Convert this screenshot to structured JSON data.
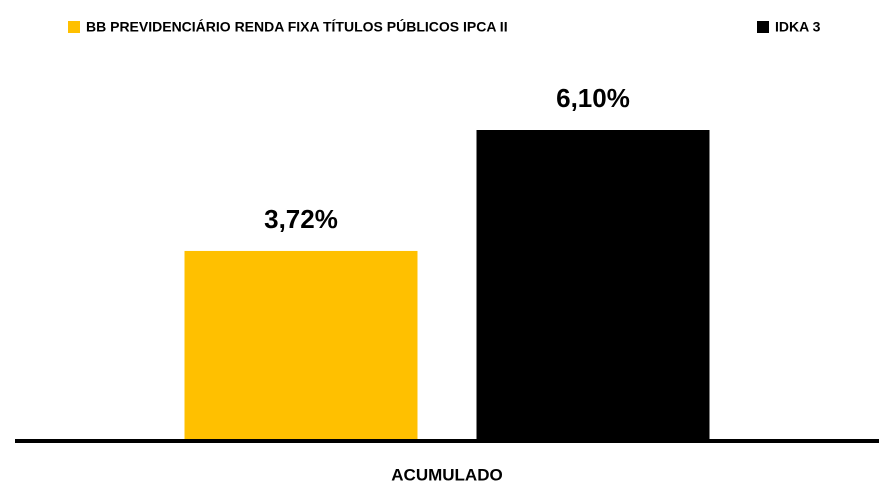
{
  "chart_data": {
    "type": "bar",
    "categories": [
      "ACUMULADO"
    ],
    "series": [
      {
        "name": "BB PREVIDENCIÁRIO RENDA FIXA TÍTULOS PÚBLICOS IPCA II",
        "color": "#ffc000",
        "values": [
          3.72
        ],
        "value_labels": [
          "3,72%"
        ]
      },
      {
        "name": "IDKA 3",
        "color": "#000000",
        "values": [
          6.1
        ],
        "value_labels": [
          "6,10%"
        ]
      }
    ],
    "legend": "top"
  }
}
